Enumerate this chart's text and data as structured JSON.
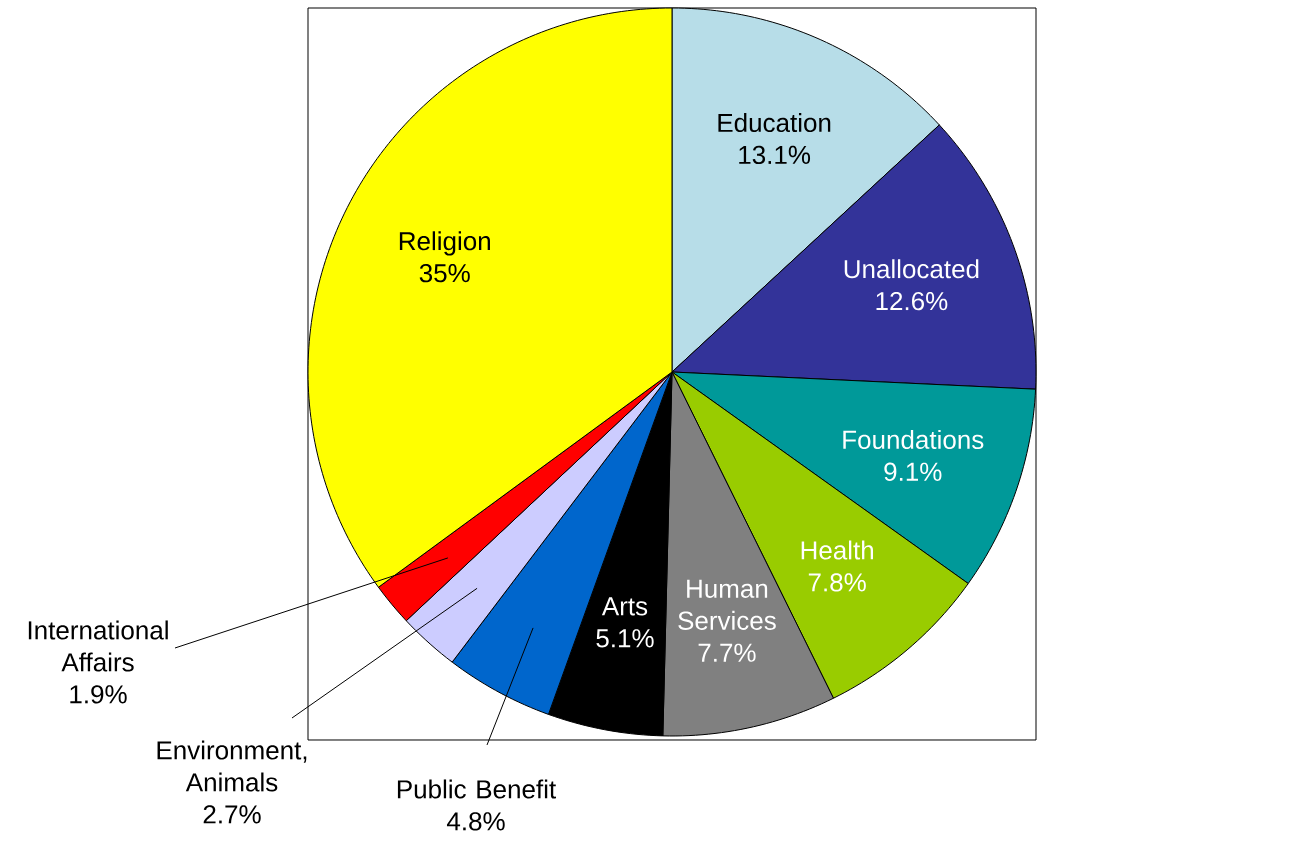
{
  "chart_data": {
    "type": "pie",
    "categories": [
      "Education",
      "Unallocated",
      "Foundations",
      "Health",
      "Human Services",
      "Arts",
      "Public Benefit",
      "Environment, Animals",
      "International Affairs",
      "Religion"
    ],
    "values": [
      13.1,
      12.6,
      9.1,
      7.8,
      7.7,
      5.1,
      4.8,
      2.7,
      1.9,
      35
    ],
    "colors": [
      "#b7dde8",
      "#333399",
      "#009999",
      "#99cc00",
      "#808080",
      "#000000",
      "#0066cc",
      "#ccccff",
      "#ff0000",
      "#ffff00"
    ],
    "value_labels": [
      "13.1%",
      "12.6%",
      "9.1%",
      "7.8%",
      "7.7%",
      "5.1%",
      "4.8%",
      "2.7%",
      "1.9%",
      "35%"
    ]
  }
}
